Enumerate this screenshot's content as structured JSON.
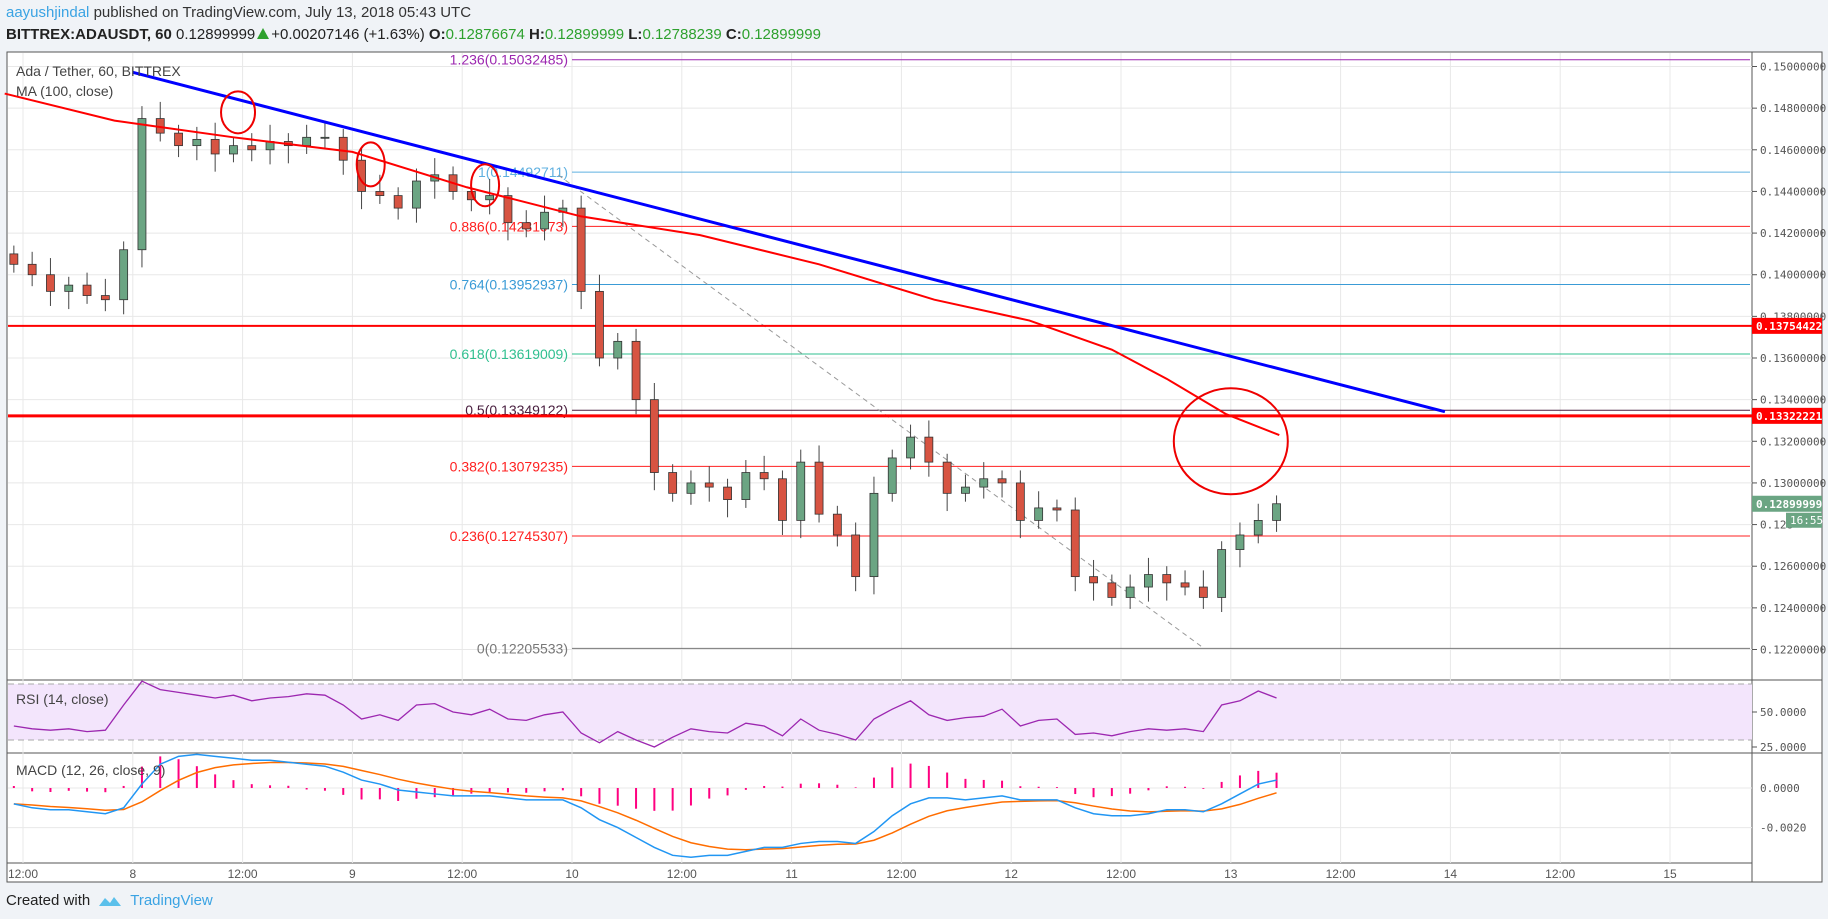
{
  "header": {
    "author": "aayushjindal",
    "published_text": "published on TradingView.com, July 13, 2018 05:43 UTC",
    "symbol": "BITTREX:ADAUSDT, 60",
    "last": "0.12899999",
    "change": "+0.00207146 (+1.63%)",
    "o_label": "O:",
    "o": "0.12876674",
    "h_label": "H:",
    "h": "0.12899999",
    "l_label": "L:",
    "l": "0.12788239",
    "c_label": "C:",
    "c": "0.12899999"
  },
  "legend": {
    "title": "Ada / Tether, 60, BITTREX",
    "ma": "MA (100, close)",
    "rsi": "RSI (14, close)",
    "macd": "MACD (12, 26, close, 9)"
  },
  "footer": {
    "created_with": "Created with",
    "brand": "TradingView"
  },
  "colors": {
    "up": "#6ba583",
    "down": "#d75442",
    "ma": "#ff0000",
    "trend": "#0000ff",
    "rsi": "#9c27b0",
    "macd": "#2196f3",
    "signal": "#ff6d00",
    "hist": "#ff0080"
  },
  "chart_data": {
    "type": "candlestick",
    "title": "Ada / Tether, 60, BITTREX",
    "ylim": [
      0.1205,
      0.1515
    ],
    "y_ticks": [
      "0.15000000",
      "0.14800000",
      "0.14600000",
      "0.14400000",
      "0.14200000",
      "0.14000000",
      "0.13800000",
      "0.13600000",
      "0.13400000",
      "0.13200000",
      "0.13000000",
      "0.128",
      "0.12600000",
      "0.12400000",
      "0.12200000"
    ],
    "y_tick_values": [
      0.15,
      0.148,
      0.146,
      0.144,
      0.142,
      0.14,
      0.138,
      0.136,
      0.134,
      0.132,
      0.13,
      0.128,
      0.126,
      0.124,
      0.122
    ],
    "x_ticks": [
      {
        "label": "12:00",
        "t": 0
      },
      {
        "label": "8",
        "t": 12
      },
      {
        "label": "12:00",
        "t": 24
      },
      {
        "label": "9",
        "t": 36
      },
      {
        "label": "12:00",
        "t": 48
      },
      {
        "label": "10",
        "t": 60
      },
      {
        "label": "12:00",
        "t": 72
      },
      {
        "label": "11",
        "t": 84
      },
      {
        "label": "12:00",
        "t": 96
      },
      {
        "label": "12",
        "t": 108
      },
      {
        "label": "12:00",
        "t": 120
      },
      {
        "label": "13",
        "t": 132
      },
      {
        "label": "12:00",
        "t": 144
      },
      {
        "label": "14",
        "t": 156
      },
      {
        "label": "12:00",
        "t": 168
      },
      {
        "label": "15",
        "t": 180
      }
    ],
    "candle_start_t": -1,
    "candle_step_hours": 2,
    "first_open": 0.141,
    "closes": [
      0.1405,
      0.14,
      0.1392,
      0.1395,
      0.139,
      0.1388,
      0.1412,
      0.1475,
      0.1468,
      0.1462,
      0.1465,
      0.1458,
      0.1462,
      0.146,
      0.1464,
      0.1462,
      0.1466,
      0.1466,
      0.1455,
      0.144,
      0.1438,
      0.1432,
      0.1445,
      0.1448,
      0.144,
      0.1436,
      0.1438,
      0.1425,
      0.1422,
      0.143,
      0.1432,
      0.1392,
      0.136,
      0.1368,
      0.134,
      0.1305,
      0.1295,
      0.13,
      0.1298,
      0.1292,
      0.1305,
      0.1302,
      0.1282,
      0.131,
      0.1285,
      0.1275,
      0.1255,
      0.1295,
      0.1312,
      0.1322,
      0.131,
      0.1295,
      0.1298,
      0.1302,
      0.13,
      0.1282,
      0.1288,
      0.1287,
      0.1255,
      0.1252,
      0.1245,
      0.125,
      0.1256,
      0.1252,
      0.125,
      0.1245,
      0.1268,
      0.1275,
      0.1282,
      0.129
    ],
    "ma100": [
      [
        -2,
        0.1487
      ],
      [
        10,
        0.1474
      ],
      [
        23,
        0.1466
      ],
      [
        36,
        0.1459
      ],
      [
        48.5,
        0.1442
      ],
      [
        61,
        0.1428
      ],
      [
        74,
        0.1419
      ],
      [
        87,
        0.1405
      ],
      [
        99.6,
        0.1388
      ],
      [
        110,
        0.1378
      ],
      [
        119,
        0.1364
      ],
      [
        125,
        0.135
      ],
      [
        131.5,
        0.1333
      ],
      [
        137.3,
        0.1323
      ]
    ],
    "trendline": [
      [
        12,
        0.14972
      ],
      [
        155.4,
        0.13342
      ]
    ],
    "fib_dashed": [
      [
        58.5,
        0.14479
      ],
      [
        128.9,
        0.12211
      ]
    ],
    "fib_start_t": 60,
    "fib_levels": [
      {
        "label": "1.236(0.15032485)",
        "value": 0.15032485,
        "color": "#9c27b0"
      },
      {
        "label": "1(0.14492711)",
        "value": 0.14492711,
        "color": "#5fb0e0"
      },
      {
        "label": "0.886(0.14231973)",
        "value": 0.14231973,
        "color": "#ff2020"
      },
      {
        "label": "0.764(0.13952937)",
        "value": 0.13952937,
        "color": "#3a9bd6"
      },
      {
        "label": "0.618(0.13619009)",
        "value": 0.13619009,
        "color": "#2fbf8f"
      },
      {
        "label": "0.5(0.13349122)",
        "value": 0.13349122,
        "color": "#4a2040"
      },
      {
        "label": "0.382(0.13079235)",
        "value": 0.13079235,
        "color": "#ff2020"
      },
      {
        "label": "0.236(0.12745307)",
        "value": 0.12745307,
        "color": "#ff2020"
      },
      {
        "label": "0(0.12205533)",
        "value": 0.12205533,
        "color": "#777777"
      }
    ],
    "horizontal_levels": [
      {
        "label": "0.13754422",
        "value": 0.13754422
      },
      {
        "label": "0.13322221",
        "value": 0.13322221
      }
    ],
    "last_price": {
      "label": "0.12899999",
      "value": 0.12899999,
      "countdown": "16:55"
    },
    "circles": [
      [
        23.5,
        0.1478,
        17,
        21
      ],
      [
        38,
        0.1453,
        14,
        22
      ],
      [
        50.5,
        0.1443,
        14,
        21
      ],
      [
        132,
        0.132,
        57,
        53
      ]
    ],
    "rsi": {
      "ticks": [
        "50.0000",
        "25.0000"
      ],
      "tick_values": [
        50,
        25
      ],
      "band": [
        30,
        70
      ],
      "values": [
        40,
        38,
        37,
        38,
        36,
        37,
        55,
        72,
        66,
        64,
        62,
        60,
        62,
        58,
        60,
        61,
        63,
        62,
        55,
        45,
        48,
        44,
        55,
        56,
        50,
        48,
        52,
        45,
        44,
        48,
        50,
        35,
        28,
        36,
        30,
        25,
        32,
        38,
        36,
        35,
        42,
        40,
        33,
        45,
        37,
        34,
        30,
        45,
        52,
        58,
        48,
        44,
        46,
        47,
        52,
        40,
        44,
        45,
        34,
        35,
        33,
        36,
        38,
        37,
        38,
        36,
        55,
        58,
        65,
        60
      ]
    },
    "macd": {
      "ticks": [
        "0.0000",
        "-0.0020"
      ],
      "tick_values": [
        0,
        -0.002
      ],
      "macd": [
        -0.0008,
        -0.001,
        -0.0011,
        -0.0011,
        -0.0012,
        -0.0013,
        -0.001,
        0.0002,
        0.0012,
        0.0016,
        0.0017,
        0.0016,
        0.0015,
        0.0014,
        0.0014,
        0.0013,
        0.0012,
        0.0011,
        0.0008,
        0.0004,
        0.0002,
        -0.0001,
        -0.0002,
        -0.0003,
        -0.0004,
        -0.0004,
        -0.0004,
        -0.0005,
        -0.0006,
        -0.0006,
        -0.0006,
        -0.001,
        -0.0016,
        -0.002,
        -0.0025,
        -0.003,
        -0.0034,
        -0.0035,
        -0.0034,
        -0.0034,
        -0.0032,
        -0.003,
        -0.003,
        -0.0028,
        -0.0027,
        -0.0027,
        -0.0028,
        -0.0022,
        -0.0014,
        -0.0008,
        -0.0005,
        -0.0005,
        -0.0006,
        -0.0005,
        -0.0004,
        -0.0006,
        -0.0006,
        -0.0006,
        -0.001,
        -0.0013,
        -0.0014,
        -0.0014,
        -0.0013,
        -0.0011,
        -0.0011,
        -0.0012,
        -0.0008,
        -0.0003,
        0.0002,
        0.0004
      ]
    }
  }
}
